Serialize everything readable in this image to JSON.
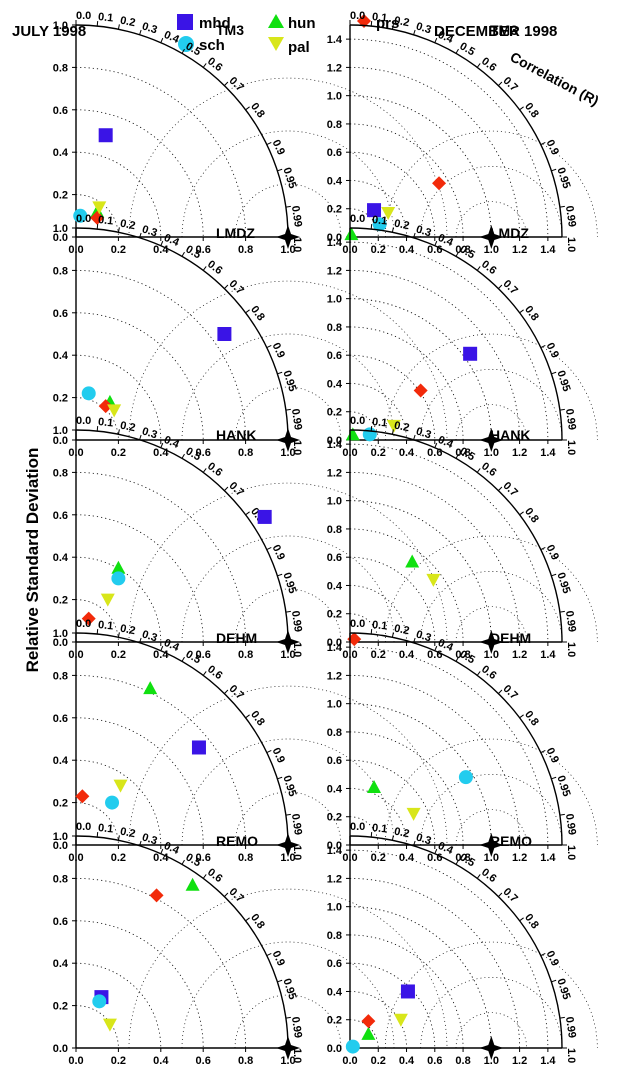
{
  "header": {
    "left_title": "JULY 1998",
    "right_title": "DECEMBER 1998"
  },
  "legend": [
    {
      "name": "mhd",
      "marker": "square",
      "color": "#3a14e6"
    },
    {
      "name": "hun",
      "marker": "triangle-up",
      "color": "#10e010"
    },
    {
      "name": "prs",
      "marker": "diamond",
      "color": "#f22a0a"
    },
    {
      "name": "sch",
      "marker": "circle",
      "color": "#22ccee"
    },
    {
      "name": "pal",
      "marker": "triangle-down",
      "color": "#d8e61a"
    }
  ],
  "y_axis_label": "Relative Standard Deviation",
  "correlation_label": "Correlation (R)",
  "correlation_ticks": [
    "0.0",
    "0.1",
    "0.2",
    "0.3",
    "0.4",
    "0.5",
    "0.6",
    "0.7",
    "0.8",
    "0.9",
    "0.95",
    "0.99",
    "1.0"
  ],
  "chart_data": [
    {
      "type": "scatter",
      "subtype": "taylor",
      "title": "TM3",
      "column": "JULY 1998",
      "rmax": 1.0,
      "ticks": [
        "0.0",
        "0.2",
        "0.4",
        "0.6",
        "0.8",
        "1.0"
      ],
      "points": [
        {
          "name": "mhd",
          "x": 0.14,
          "y": 0.48
        },
        {
          "name": "hun",
          "x": 0.1,
          "y": 0.12
        },
        {
          "name": "prs",
          "x": 0.1,
          "y": 0.09
        },
        {
          "name": "sch",
          "x": 0.02,
          "y": 0.1
        },
        {
          "name": "pal",
          "x": 0.11,
          "y": 0.14
        }
      ]
    },
    {
      "type": "scatter",
      "subtype": "taylor",
      "title": "TM3",
      "column": "DECEMBER 1998",
      "rmax": 1.5,
      "ticks": [
        "0.0",
        "0.2",
        "0.4",
        "0.6",
        "0.8",
        "1.0",
        "1.2",
        "1.4"
      ],
      "points": [
        {
          "name": "mhd",
          "x": 0.17,
          "y": 0.19
        },
        {
          "name": "hun",
          "x": 0.01,
          "y": 0.02
        },
        {
          "name": "prs",
          "x": 0.63,
          "y": 0.38
        },
        {
          "name": "sch",
          "x": 0.21,
          "y": 0.09
        },
        {
          "name": "pal",
          "x": 0.27,
          "y": 0.17
        }
      ]
    },
    {
      "type": "scatter",
      "subtype": "taylor",
      "title": "LMDZ",
      "column": "JULY 1998",
      "rmax": 1.0,
      "ticks": [
        "0.0",
        "0.2",
        "0.4",
        "0.6",
        "0.8",
        "1.0"
      ],
      "points": [
        {
          "name": "mhd",
          "x": 0.7,
          "y": 0.5
        },
        {
          "name": "hun",
          "x": 0.16,
          "y": 0.18
        },
        {
          "name": "prs",
          "x": 0.14,
          "y": 0.16
        },
        {
          "name": "sch",
          "x": 0.06,
          "y": 0.22
        },
        {
          "name": "pal",
          "x": 0.18,
          "y": 0.14
        }
      ]
    },
    {
      "type": "scatter",
      "subtype": "taylor",
      "title": "LMDZ",
      "column": "DECEMBER 1998",
      "rmax": 1.5,
      "ticks": [
        "0.0",
        "0.2",
        "0.4",
        "0.6",
        "0.8",
        "1.0",
        "1.2",
        "1.4"
      ],
      "points": [
        {
          "name": "mhd",
          "x": 0.85,
          "y": 0.61
        },
        {
          "name": "hun",
          "x": 0.02,
          "y": 0.04
        },
        {
          "name": "prs",
          "x": 0.5,
          "y": 0.35
        },
        {
          "name": "sch",
          "x": 0.14,
          "y": 0.04
        },
        {
          "name": "pal",
          "x": 0.31,
          "y": 0.1
        }
      ]
    },
    {
      "type": "scatter",
      "subtype": "taylor",
      "title": "HANK",
      "column": "JULY 1998",
      "rmax": 1.0,
      "ticks": [
        "0.0",
        "0.2",
        "0.4",
        "0.6",
        "0.8",
        "1.0"
      ],
      "points": [
        {
          "name": "mhd",
          "x": 0.89,
          "y": 0.59
        },
        {
          "name": "hun",
          "x": 0.2,
          "y": 0.35
        },
        {
          "name": "prs",
          "x": 0.06,
          "y": 0.11
        },
        {
          "name": "sch",
          "x": 0.2,
          "y": 0.3
        },
        {
          "name": "pal",
          "x": 0.15,
          "y": 0.2
        }
      ]
    },
    {
      "type": "scatter",
      "subtype": "taylor",
      "title": "HANK",
      "column": "DECEMBER 1998",
      "rmax": 1.5,
      "ticks": [
        "0.0",
        "0.2",
        "0.4",
        "0.6",
        "0.8",
        "1.0",
        "1.2",
        "1.4"
      ],
      "points": [
        {
          "name": "hun",
          "x": 0.44,
          "y": 0.57
        },
        {
          "name": "prs",
          "x": 0.03,
          "y": 0.02
        },
        {
          "name": "pal",
          "x": 0.59,
          "y": 0.44
        }
      ]
    },
    {
      "type": "scatter",
      "subtype": "taylor",
      "title": "DEHM",
      "column": "JULY 1998",
      "rmax": 1.0,
      "ticks": [
        "0.0",
        "0.2",
        "0.4",
        "0.6",
        "0.8",
        "1.0"
      ],
      "points": [
        {
          "name": "mhd",
          "x": 0.58,
          "y": 0.46
        },
        {
          "name": "hun",
          "x": 0.35,
          "y": 0.74
        },
        {
          "name": "prs",
          "x": 0.03,
          "y": 0.23
        },
        {
          "name": "sch",
          "x": 0.17,
          "y": 0.2
        },
        {
          "name": "pal",
          "x": 0.21,
          "y": 0.28
        }
      ]
    },
    {
      "type": "scatter",
      "subtype": "taylor",
      "title": "DEHM",
      "column": "DECEMBER 1998",
      "rmax": 1.5,
      "ticks": [
        "0.0",
        "0.2",
        "0.4",
        "0.6",
        "0.8",
        "1.0",
        "1.2",
        "1.4"
      ],
      "points": [
        {
          "name": "hun",
          "x": 0.17,
          "y": 0.41
        },
        {
          "name": "sch",
          "x": 0.82,
          "y": 0.48
        },
        {
          "name": "pal",
          "x": 0.45,
          "y": 0.22
        }
      ]
    },
    {
      "type": "scatter",
      "subtype": "taylor",
      "title": "REMO",
      "column": "JULY 1998",
      "rmax": 1.0,
      "ticks": [
        "0.0",
        "0.2",
        "0.4",
        "0.6",
        "0.8",
        "1.0"
      ],
      "points": [
        {
          "name": "mhd",
          "x": 0.12,
          "y": 0.24
        },
        {
          "name": "hun",
          "x": 0.55,
          "y": 0.77
        },
        {
          "name": "prs",
          "x": 0.38,
          "y": 0.72
        },
        {
          "name": "sch",
          "x": 0.11,
          "y": 0.22
        },
        {
          "name": "pal",
          "x": 0.16,
          "y": 0.11
        }
      ]
    },
    {
      "type": "scatter",
      "subtype": "taylor",
      "title": "REMO",
      "column": "DECEMBER 1998",
      "rmax": 1.5,
      "ticks": [
        "0.0",
        "0.2",
        "0.4",
        "0.6",
        "0.8",
        "1.0",
        "1.2",
        "1.4"
      ],
      "points": [
        {
          "name": "mhd",
          "x": 0.41,
          "y": 0.4
        },
        {
          "name": "hun",
          "x": 0.13,
          "y": 0.1
        },
        {
          "name": "prs",
          "x": 0.13,
          "y": 0.19
        },
        {
          "name": "sch",
          "x": 0.02,
          "y": 0.01
        },
        {
          "name": "pal",
          "x": 0.36,
          "y": 0.2
        }
      ]
    }
  ]
}
